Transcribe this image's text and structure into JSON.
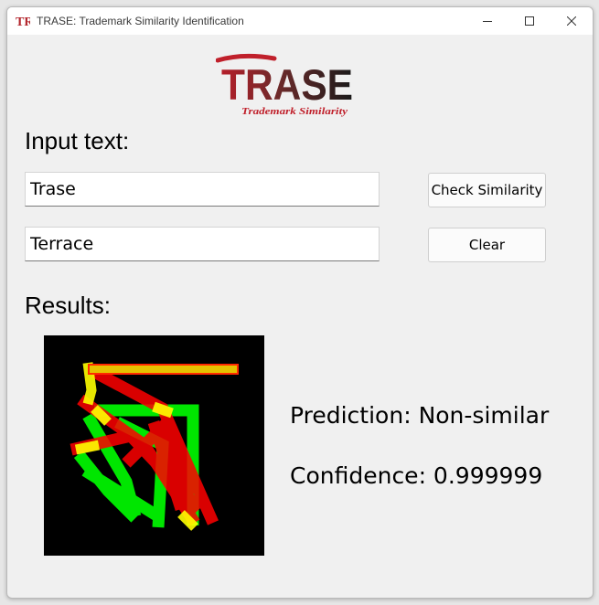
{
  "window": {
    "title": "TRASE: Trademark Similarity Identification",
    "icon_text": "TR",
    "controls": [
      "minimize-icon",
      "maximize-icon",
      "close-icon"
    ]
  },
  "logo": {
    "main_text": "TRASE",
    "tagline": "Trademark Similarity"
  },
  "input_section": {
    "heading": "Input text:",
    "text1_value": "Trase",
    "text2_value": "Terrace"
  },
  "buttons": {
    "check_label": "Check Similarity",
    "clear_label": "Clear"
  },
  "results": {
    "heading": "Results:",
    "prediction_text": "Prediction: Non-similar",
    "confidence_text": "Confidence: 0.999999"
  },
  "colors": {
    "accent_red": "#d0202a",
    "logo_dark": "#2b2b2b",
    "visual_red": "#ff0000",
    "visual_green": "#00ff00",
    "visual_yellow": "#ffff00"
  }
}
